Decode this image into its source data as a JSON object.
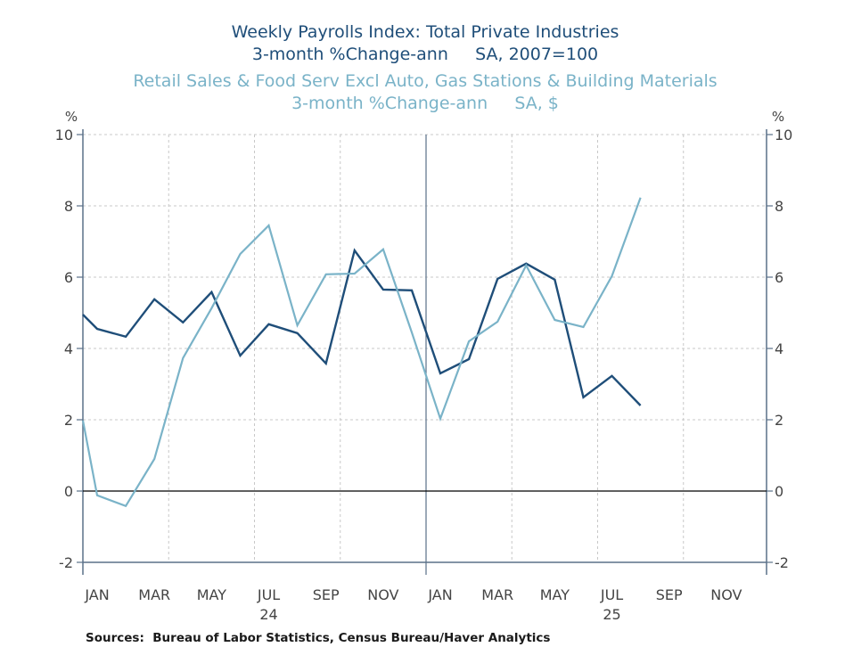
{
  "chart_data": {
    "type": "line",
    "titles": [
      {
        "text": "Weekly Payrolls Index: Total Private Industries",
        "series": "payrolls"
      },
      {
        "text": "3-month %Change-ann     SA, 2007=100",
        "series": "payrolls"
      },
      {
        "text": "Retail Sales & Food Serv Excl Auto, Gas Stations & Building Materials",
        "series": "retail"
      },
      {
        "text": "3-month %Change-ann     SA, $",
        "series": "retail"
      }
    ],
    "y_left_unit": "%",
    "y_right_unit": "%",
    "ylim": [
      -2,
      10
    ],
    "yticks": [
      -2,
      0,
      2,
      4,
      6,
      8,
      10
    ],
    "ytick_labels": [
      "-2",
      "0",
      "2",
      "4",
      "6",
      "8",
      "10"
    ],
    "x_range_months": [
      "2024-01",
      "2025-12"
    ],
    "xtick_labels": [
      "JAN",
      "MAR",
      "MAY",
      "JUL",
      "SEP",
      "NOV",
      "JAN",
      "MAR",
      "MAY",
      "JUL",
      "SEP",
      "NOV"
    ],
    "year_labels": [
      {
        "label": "24",
        "under": "JUL"
      },
      {
        "label": "25",
        "under": "JUL"
      }
    ],
    "grid": true,
    "zero_line": true,
    "colors": {
      "payrolls": "#1f4e79",
      "retail": "#7ab3c8",
      "axis": "#5a7089",
      "grid": "#c8c8c8",
      "zero": "#000000"
    },
    "x": [
      "2023-12 (axis start)",
      "2024-01",
      "2024-02",
      "2024-03",
      "2024-04",
      "2024-05",
      "2024-06",
      "2024-07",
      "2024-08",
      "2024-09",
      "2024-10",
      "2024-11",
      "2024-12",
      "2025-01",
      "2025-02",
      "2025-03",
      "2025-04",
      "2025-05",
      "2025-06",
      "2025-07",
      "2025-08"
    ],
    "series": [
      {
        "name": "Weekly Payrolls Index: Total Private Industries, 3-month %Change-ann",
        "key": "payrolls",
        "values": [
          4.95,
          4.55,
          4.33,
          5.38,
          4.73,
          5.58,
          3.8,
          4.68,
          4.43,
          3.58,
          6.75,
          5.65,
          5.63,
          3.3,
          3.7,
          5.95,
          6.38,
          5.93,
          2.63,
          3.23,
          2.4
        ]
      },
      {
        "name": "Retail Sales & Food Serv Excl Auto, Gas Stations & Building Materials, 3-month %Change-ann",
        "key": "retail",
        "values": [
          1.98,
          -0.12,
          -0.42,
          0.9,
          3.73,
          5.13,
          6.65,
          7.45,
          4.65,
          6.08,
          6.1,
          6.78,
          4.45,
          2.03,
          4.2,
          4.75,
          6.33,
          4.8,
          4.6,
          6.03,
          8.23
        ]
      }
    ],
    "source": "Sources:  Bureau of Labor Statistics, Census Bureau/Haver Analytics"
  }
}
